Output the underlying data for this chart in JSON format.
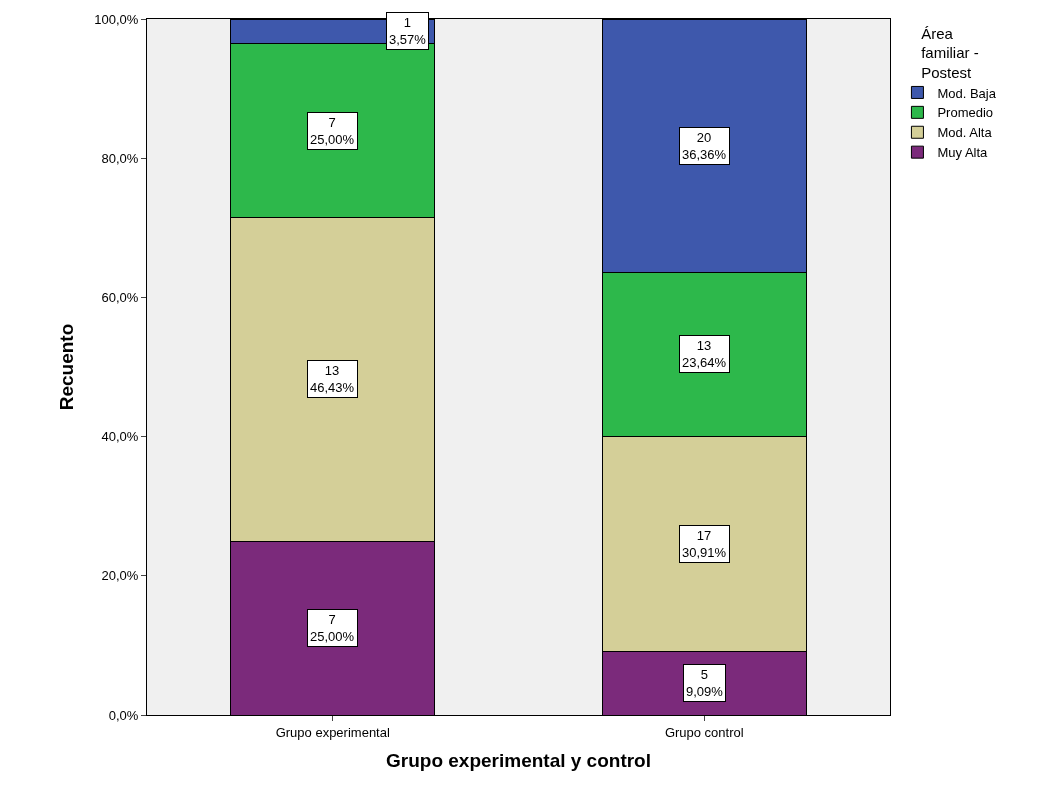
{
  "chart_data": {
    "type": "bar",
    "stacked": true,
    "xlabel": "Grupo experimental y control",
    "ylabel": "Recuento",
    "legend_title": "Área familiar - Postest",
    "legend": "top right",
    "grid": false,
    "categories": [
      "Grupo experimental",
      "Grupo control"
    ],
    "ylim": [
      0,
      100
    ],
    "yticks": [
      {
        "value": 0,
        "label": "0,0%"
      },
      {
        "value": 20,
        "label": "20,0%"
      },
      {
        "value": 40,
        "label": "40,0%"
      },
      {
        "value": 60,
        "label": "60,0%"
      },
      {
        "value": 80,
        "label": "80,0%"
      },
      {
        "value": 100,
        "label": "100,0%"
      }
    ],
    "series": [
      {
        "name": "Muy Alta",
        "color": "#7b2a7b",
        "values": [
          25.0,
          9.09
        ],
        "value_labels": [
          "7\n25,00%",
          "5\n9,09%"
        ]
      },
      {
        "name": "Mod. Alta",
        "color": "#d4cf98",
        "values": [
          46.43,
          30.91
        ],
        "value_labels": [
          "13\n46,43%",
          "17\n30,91%"
        ]
      },
      {
        "name": "Promedio",
        "color": "#2db84b",
        "values": [
          25.0,
          23.64
        ],
        "value_labels": [
          "7\n25,00%",
          "13\n23,64%"
        ]
      },
      {
        "name": "Mod. Baja",
        "color": "#3e58ac",
        "values": [
          3.57,
          36.36
        ],
        "value_labels": [
          "1\n3,57%",
          "20\n36,36%"
        ]
      }
    ]
  }
}
